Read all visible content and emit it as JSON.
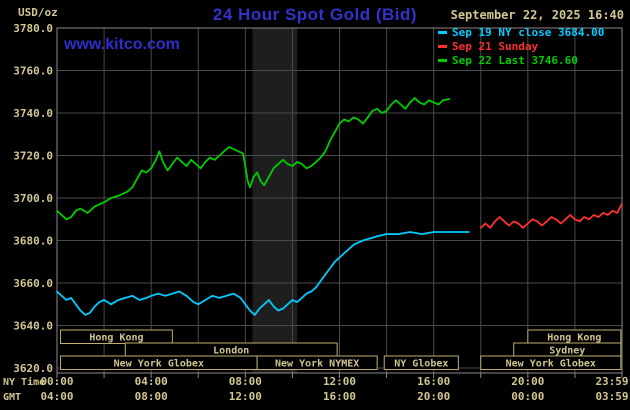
{
  "header": {
    "units_label": "USD/oz",
    "title": "24 Hour Spot Gold (Bid)",
    "datetime": "September 22, 2025 16:40",
    "website": "www.kitco.com"
  },
  "legend": [
    {
      "label": "Sep 19 NY close 3684.00",
      "color": "#00ccff"
    },
    {
      "label": "Sep 21 Sunday",
      "color": "#ff3030"
    },
    {
      "label": "Sep 22 Last 3746.60",
      "color": "#00cc00"
    }
  ],
  "colors": {
    "background": "#000000",
    "title_blue": "#3232cd",
    "tan": "#d2c691",
    "grid": "#4a4a4a",
    "border": "#8a8a8a",
    "session_border": "#bfae6e",
    "band": "#1e1e1e"
  },
  "axes": {
    "y_label": "USD/oz",
    "y_ticks": [
      {
        "label": "3780.0",
        "value": 3780
      },
      {
        "label": "3760.0",
        "value": 3760
      },
      {
        "label": "3740.0",
        "value": 3740
      },
      {
        "label": "3720.0",
        "value": 3720
      },
      {
        "label": "3700.0",
        "value": 3700
      },
      {
        "label": "3680.0",
        "value": 3680
      },
      {
        "label": "3660.0",
        "value": 3660
      },
      {
        "label": "3640.0",
        "value": 3640
      },
      {
        "label": "3620.0",
        "value": 3620
      }
    ],
    "x_tick_hours": [
      0,
      4,
      8,
      12,
      16,
      20,
      23.983
    ],
    "x_rows": [
      {
        "name": "NY Time",
        "labels": [
          "00:00",
          "04:00",
          "08:00",
          "12:00",
          "16:00",
          "20:00",
          "23:59"
        ]
      },
      {
        "name": "GMT",
        "labels": [
          "04:00",
          "08:00",
          "12:00",
          "16:00",
          "20:00",
          "00:00",
          "03:59"
        ]
      }
    ]
  },
  "sessions": {
    "rows": [
      [
        {
          "label": "Hong Kong",
          "start": 0.15,
          "end": 4.9
        },
        {
          "label": "Hong Kong",
          "start": 20.0,
          "end": 23.95
        }
      ],
      [
        {
          "label": "London",
          "start": 2.9,
          "end": 11.9
        },
        {
          "label": "Sydney",
          "start": 19.4,
          "end": 23.95
        }
      ],
      [
        {
          "label": "New York Globex",
          "start": 0.15,
          "end": 8.5
        },
        {
          "label": "New York NYMEX",
          "start": 8.5,
          "end": 13.6
        },
        {
          "label": "NY Globex",
          "start": 13.9,
          "end": 17.05
        },
        {
          "label": "New York Globex",
          "start": 18.0,
          "end": 23.95
        }
      ]
    ]
  },
  "chart_data": {
    "type": "line",
    "title": "24 Hour Spot Gold (Bid)",
    "xlabel": "NY Time (hours 00:00-23:59)",
    "ylabel": "USD/oz",
    "xlim": [
      0,
      24
    ],
    "ylim": [
      3620,
      3780
    ],
    "y_gridline_step": 20,
    "x_gridline_step_hours": 2,
    "grid": true,
    "legend_position": "top-right",
    "shaded_band": {
      "start_hour": 8.3,
      "end_hour": 10.2
    },
    "series": [
      {
        "name": "Sep 19 NY close 3684.00",
        "color": "#00ccff",
        "points": [
          [
            0,
            3656
          ],
          [
            0.2,
            3654
          ],
          [
            0.4,
            3652
          ],
          [
            0.6,
            3653
          ],
          [
            0.8,
            3650
          ],
          [
            1,
            3647
          ],
          [
            1.2,
            3645
          ],
          [
            1.4,
            3646
          ],
          [
            1.6,
            3649
          ],
          [
            1.8,
            3651
          ],
          [
            2,
            3652
          ],
          [
            2.3,
            3650
          ],
          [
            2.6,
            3652
          ],
          [
            2.9,
            3653
          ],
          [
            3.2,
            3654
          ],
          [
            3.5,
            3652
          ],
          [
            3.8,
            3653
          ],
          [
            4,
            3654
          ],
          [
            4.3,
            3655
          ],
          [
            4.6,
            3654
          ],
          [
            4.9,
            3655
          ],
          [
            5.2,
            3656
          ],
          [
            5.5,
            3654
          ],
          [
            5.8,
            3651
          ],
          [
            6,
            3650
          ],
          [
            6.3,
            3652
          ],
          [
            6.6,
            3654
          ],
          [
            6.9,
            3653
          ],
          [
            7.2,
            3654
          ],
          [
            7.5,
            3655
          ],
          [
            7.8,
            3653
          ],
          [
            8,
            3650
          ],
          [
            8.2,
            3647
          ],
          [
            8.4,
            3645
          ],
          [
            8.6,
            3648
          ],
          [
            8.8,
            3650
          ],
          [
            9,
            3652
          ],
          [
            9.2,
            3649
          ],
          [
            9.4,
            3647
          ],
          [
            9.6,
            3648
          ],
          [
            9.8,
            3650
          ],
          [
            10,
            3652
          ],
          [
            10.2,
            3651
          ],
          [
            10.4,
            3653
          ],
          [
            10.6,
            3655
          ],
          [
            10.8,
            3656
          ],
          [
            11,
            3658
          ],
          [
            11.2,
            3661
          ],
          [
            11.4,
            3664
          ],
          [
            11.6,
            3667
          ],
          [
            11.8,
            3670
          ],
          [
            12,
            3672
          ],
          [
            12.2,
            3674
          ],
          [
            12.4,
            3676
          ],
          [
            12.6,
            3678
          ],
          [
            12.8,
            3679
          ],
          [
            13,
            3680
          ],
          [
            13.3,
            3681
          ],
          [
            13.6,
            3682
          ],
          [
            14,
            3683
          ],
          [
            14.5,
            3683
          ],
          [
            15,
            3684
          ],
          [
            15.5,
            3683
          ],
          [
            16,
            3684
          ],
          [
            16.5,
            3684
          ],
          [
            17,
            3684
          ],
          [
            17.5,
            3684
          ]
        ]
      },
      {
        "name": "Sep 21 Sunday",
        "color": "#ff3030",
        "points": [
          [
            18,
            3686
          ],
          [
            18.2,
            3688
          ],
          [
            18.4,
            3686
          ],
          [
            18.6,
            3689
          ],
          [
            18.8,
            3691
          ],
          [
            19,
            3689
          ],
          [
            19.2,
            3687
          ],
          [
            19.4,
            3689
          ],
          [
            19.6,
            3688
          ],
          [
            19.8,
            3686
          ],
          [
            20,
            3688
          ],
          [
            20.2,
            3690
          ],
          [
            20.4,
            3689
          ],
          [
            20.6,
            3687
          ],
          [
            20.8,
            3689
          ],
          [
            21,
            3691
          ],
          [
            21.2,
            3690
          ],
          [
            21.4,
            3688
          ],
          [
            21.6,
            3690
          ],
          [
            21.8,
            3692
          ],
          [
            22,
            3690
          ],
          [
            22.2,
            3689
          ],
          [
            22.4,
            3691
          ],
          [
            22.6,
            3690
          ],
          [
            22.8,
            3692
          ],
          [
            23,
            3691
          ],
          [
            23.2,
            3693
          ],
          [
            23.4,
            3692
          ],
          [
            23.6,
            3694
          ],
          [
            23.8,
            3693
          ],
          [
            23.98,
            3697
          ]
        ]
      },
      {
        "name": "Sep 22 Last 3746.60",
        "color": "#00cc00",
        "points": [
          [
            0,
            3694
          ],
          [
            0.2,
            3692
          ],
          [
            0.4,
            3690
          ],
          [
            0.6,
            3691
          ],
          [
            0.8,
            3694
          ],
          [
            1,
            3695
          ],
          [
            1.3,
            3693
          ],
          [
            1.6,
            3696
          ],
          [
            2,
            3698
          ],
          [
            2.3,
            3700
          ],
          [
            2.6,
            3701
          ],
          [
            3,
            3703
          ],
          [
            3.2,
            3705
          ],
          [
            3.4,
            3709
          ],
          [
            3.6,
            3713
          ],
          [
            3.8,
            3712
          ],
          [
            4,
            3714
          ],
          [
            4.2,
            3718
          ],
          [
            4.35,
            3722
          ],
          [
            4.5,
            3717
          ],
          [
            4.7,
            3713
          ],
          [
            4.9,
            3716
          ],
          [
            5.1,
            3719
          ],
          [
            5.3,
            3717
          ],
          [
            5.5,
            3715
          ],
          [
            5.7,
            3718
          ],
          [
            5.9,
            3716
          ],
          [
            6.1,
            3714
          ],
          [
            6.3,
            3717
          ],
          [
            6.5,
            3719
          ],
          [
            6.7,
            3718
          ],
          [
            6.9,
            3720
          ],
          [
            7.1,
            3722
          ],
          [
            7.3,
            3724
          ],
          [
            7.5,
            3723
          ],
          [
            7.7,
            3722
          ],
          [
            7.9,
            3721
          ],
          [
            8,
            3715
          ],
          [
            8.1,
            3708
          ],
          [
            8.2,
            3705
          ],
          [
            8.35,
            3710
          ],
          [
            8.5,
            3712
          ],
          [
            8.65,
            3708
          ],
          [
            8.8,
            3706
          ],
          [
            9,
            3710
          ],
          [
            9.2,
            3714
          ],
          [
            9.4,
            3716
          ],
          [
            9.6,
            3718
          ],
          [
            9.8,
            3716
          ],
          [
            10,
            3715
          ],
          [
            10.2,
            3717
          ],
          [
            10.4,
            3716
          ],
          [
            10.6,
            3714
          ],
          [
            10.8,
            3715
          ],
          [
            11,
            3717
          ],
          [
            11.2,
            3719
          ],
          [
            11.4,
            3722
          ],
          [
            11.6,
            3727
          ],
          [
            11.8,
            3731
          ],
          [
            12,
            3735
          ],
          [
            12.2,
            3737
          ],
          [
            12.4,
            3736
          ],
          [
            12.6,
            3738
          ],
          [
            12.8,
            3737
          ],
          [
            13,
            3735
          ],
          [
            13.2,
            3738
          ],
          [
            13.4,
            3741
          ],
          [
            13.6,
            3742
          ],
          [
            13.8,
            3740
          ],
          [
            14,
            3741
          ],
          [
            14.2,
            3744
          ],
          [
            14.4,
            3746
          ],
          [
            14.6,
            3744
          ],
          [
            14.8,
            3742
          ],
          [
            15,
            3745
          ],
          [
            15.2,
            3747
          ],
          [
            15.4,
            3745
          ],
          [
            15.6,
            3744
          ],
          [
            15.8,
            3746
          ],
          [
            16,
            3745
          ],
          [
            16.2,
            3744
          ],
          [
            16.4,
            3746
          ],
          [
            16.67,
            3746.6
          ]
        ]
      }
    ]
  }
}
